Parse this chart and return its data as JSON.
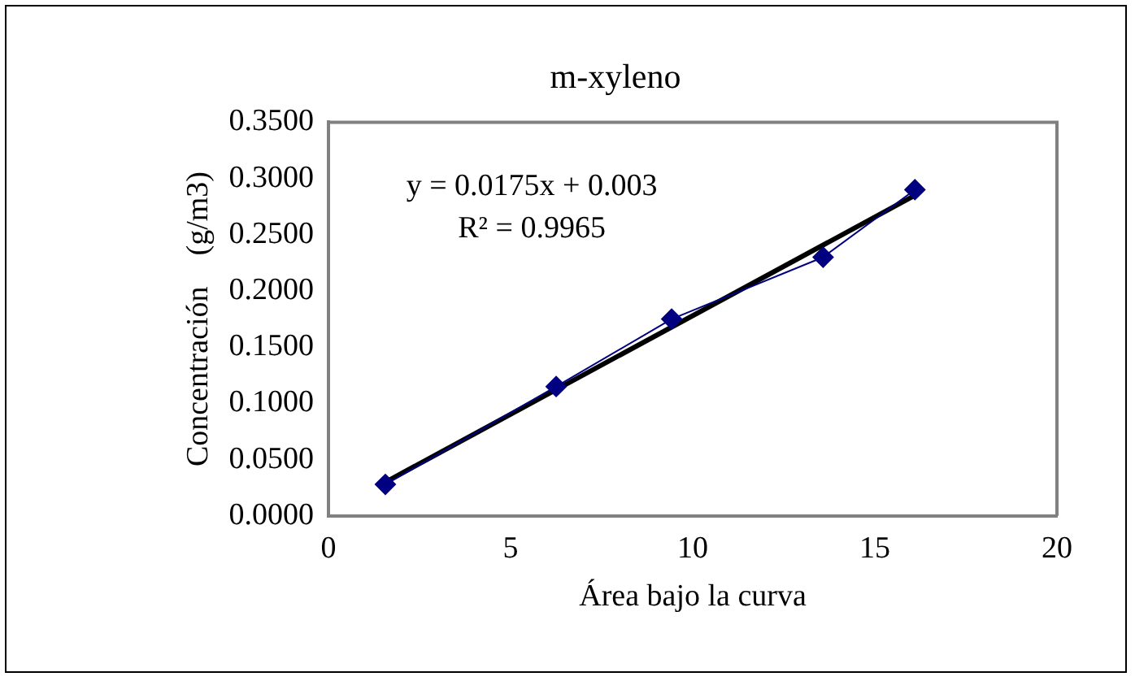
{
  "chart_data": {
    "type": "scatter",
    "title": "m-xyleno",
    "xlabel": "Área bajo la curva",
    "ylabel": "Concentración    (g/m3)",
    "annotations": [
      "y = 0.0175x + 0.003",
      "R² = 0.9965"
    ],
    "marker": "diamond",
    "grid": false,
    "legend": false,
    "xlim": [
      0,
      20
    ],
    "xticks": [
      0,
      5,
      10,
      15,
      20
    ],
    "ylim": [
      0,
      0.35
    ],
    "yticks": [
      {
        "value": 0,
        "label": "0.0000"
      },
      {
        "value": 0.05,
        "label": "0.0500"
      },
      {
        "value": 0.1,
        "label": "0.1000"
      },
      {
        "value": 0.15,
        "label": "0.1500"
      },
      {
        "value": 0.2,
        "label": "0.2000"
      },
      {
        "value": 0.25,
        "label": "0.2500"
      },
      {
        "value": 0.3,
        "label": "0.3000"
      },
      {
        "value": 0.35,
        "label": "0.3500"
      }
    ],
    "series": [
      {
        "type": "line",
        "color": "#000080",
        "x": [
          1.56,
          6.25,
          9.42,
          13.58,
          16.1
        ],
        "values": [
          0.028,
          0.115,
          0.175,
          0.23,
          0.29
        ]
      },
      {
        "type": "line",
        "color": "#000000",
        "marker": "none",
        "x": [
          1.56,
          16.1
        ],
        "values": [
          0.03,
          0.285
        ]
      }
    ]
  }
}
